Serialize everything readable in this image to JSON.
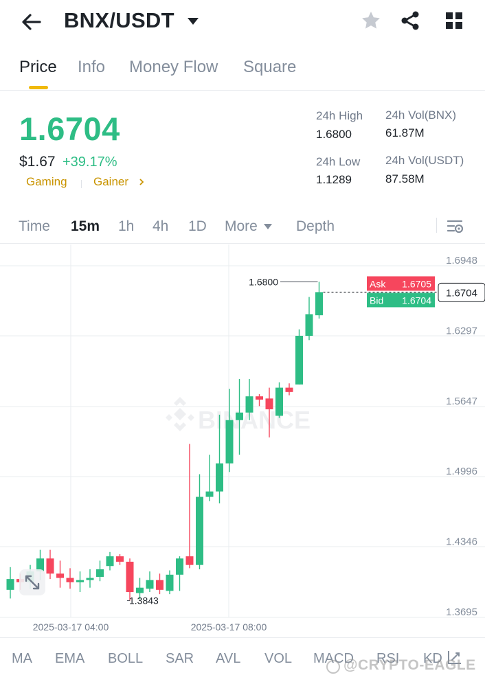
{
  "header": {
    "pair": "BNX/USDT",
    "icons": [
      "back-arrow-icon",
      "caret-down-icon",
      "star-icon",
      "share-icon",
      "grid-icon"
    ]
  },
  "tabs": [
    {
      "label": "Price",
      "active": true
    },
    {
      "label": "Info",
      "active": false
    },
    {
      "label": "Money Flow",
      "active": false
    },
    {
      "label": "Square",
      "active": false
    }
  ],
  "ticker": {
    "last_price": "1.6704",
    "fiat_price": "$1.67",
    "change_pct": "+39.17%",
    "tags": [
      "Gaming",
      "Gainer"
    ],
    "high_label": "24h High",
    "high_value": "1.6800",
    "low_label": "24h Low",
    "low_value": "1.1289",
    "vol_base_label": "24h Vol(BNX)",
    "vol_base_value": "61.87M",
    "vol_quote_label": "24h Vol(USDT)",
    "vol_quote_value": "87.58M"
  },
  "intervals": {
    "items": [
      "Time",
      "15m",
      "1h",
      "4h",
      "1D",
      "More",
      "Depth"
    ],
    "active": "15m"
  },
  "colors": {
    "up": "#2ebd85",
    "down": "#f6465d",
    "accent": "#f0b90b",
    "tag": "#c99400"
  },
  "chart_data": {
    "type": "candlestick",
    "y_ticks": [
      "1.6948",
      "1.6297",
      "1.5647",
      "1.4996",
      "1.4346",
      "1.3695"
    ],
    "ylim": [
      1.3695,
      1.6948
    ],
    "x_ticks": [
      "2025-03-17 04:00",
      "2025-03-17 08:00"
    ],
    "high_marker": "1.6800",
    "low_marker": "1.3843",
    "current_price": "1.6704",
    "ask_label": "Ask",
    "ask_value": "1.6705",
    "bid_label": "Bid",
    "bid_value": "1.6704",
    "watermark": "BINANCE",
    "candles": [
      {
        "o": 1.395,
        "h": 1.416,
        "l": 1.387,
        "c": 1.405
      },
      {
        "o": 1.405,
        "h": 1.41,
        "l": 1.395,
        "c": 1.402
      },
      {
        "o": 1.402,
        "h": 1.418,
        "l": 1.396,
        "c": 1.412
      },
      {
        "o": 1.412,
        "h": 1.432,
        "l": 1.404,
        "c": 1.424
      },
      {
        "o": 1.424,
        "h": 1.432,
        "l": 1.405,
        "c": 1.41
      },
      {
        "o": 1.41,
        "h": 1.422,
        "l": 1.397,
        "c": 1.406
      },
      {
        "o": 1.406,
        "h": 1.415,
        "l": 1.396,
        "c": 1.402
      },
      {
        "o": 1.402,
        "h": 1.412,
        "l": 1.393,
        "c": 1.404
      },
      {
        "o": 1.404,
        "h": 1.414,
        "l": 1.397,
        "c": 1.406
      },
      {
        "o": 1.407,
        "h": 1.422,
        "l": 1.403,
        "c": 1.414
      },
      {
        "o": 1.417,
        "h": 1.43,
        "l": 1.413,
        "c": 1.426
      },
      {
        "o": 1.426,
        "h": 1.428,
        "l": 1.418,
        "c": 1.421
      },
      {
        "o": 1.421,
        "h": 1.424,
        "l": 1.385,
        "c": 1.393
      },
      {
        "o": 1.392,
        "h": 1.406,
        "l": 1.386,
        "c": 1.397
      },
      {
        "o": 1.396,
        "h": 1.412,
        "l": 1.393,
        "c": 1.404
      },
      {
        "o": 1.404,
        "h": 1.41,
        "l": 1.391,
        "c": 1.395
      },
      {
        "o": 1.394,
        "h": 1.413,
        "l": 1.391,
        "c": 1.409
      },
      {
        "o": 1.409,
        "h": 1.426,
        "l": 1.394,
        "c": 1.424
      },
      {
        "o": 1.426,
        "h": 1.53,
        "l": 1.415,
        "c": 1.418
      },
      {
        "o": 1.418,
        "h": 1.502,
        "l": 1.414,
        "c": 1.481
      },
      {
        "o": 1.481,
        "h": 1.52,
        "l": 1.477,
        "c": 1.486
      },
      {
        "o": 1.486,
        "h": 1.557,
        "l": 1.475,
        "c": 1.512
      },
      {
        "o": 1.512,
        "h": 1.581,
        "l": 1.504,
        "c": 1.552
      },
      {
        "o": 1.552,
        "h": 1.59,
        "l": 1.52,
        "c": 1.559
      },
      {
        "o": 1.559,
        "h": 1.59,
        "l": 1.552,
        "c": 1.574
      },
      {
        "o": 1.574,
        "h": 1.576,
        "l": 1.565,
        "c": 1.571
      },
      {
        "o": 1.572,
        "h": 1.582,
        "l": 1.536,
        "c": 1.562
      },
      {
        "o": 1.556,
        "h": 1.587,
        "l": 1.554,
        "c": 1.582
      },
      {
        "o": 1.582,
        "h": 1.586,
        "l": 1.575,
        "c": 1.578
      },
      {
        "o": 1.585,
        "h": 1.636,
        "l": 1.585,
        "c": 1.63
      },
      {
        "o": 1.63,
        "h": 1.666,
        "l": 1.626,
        "c": 1.65
      },
      {
        "o": 1.649,
        "h": 1.68,
        "l": 1.646,
        "c": 1.6704
      }
    ]
  },
  "indicators": [
    "MA",
    "EMA",
    "BOLL",
    "SAR",
    "AVL",
    "VOL",
    "MACD",
    "RSI",
    "KD"
  ],
  "watermark_bottom": "@CRYPTO-EAGLE"
}
